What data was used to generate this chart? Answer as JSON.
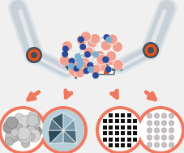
{
  "bg_color": "#f0f0f0",
  "arm_body_color": "#c8d0d8",
  "arm_body_light": "#dde4e8",
  "arm_dark": "#3d4f5c",
  "arm_mid": "#6a7f8c",
  "joint_orange": "#e8541e",
  "arrow_color": "#f07860",
  "circle_border": "#f07860",
  "circle_bg": "#ffffff",
  "circle_bg2": "#e8f0f4",
  "atom_salmon": "#f0a090",
  "atom_blue_dark": "#2a4a9a",
  "atom_blue_light": "#7ab0d0",
  "bond_color": "#8898a8"
}
